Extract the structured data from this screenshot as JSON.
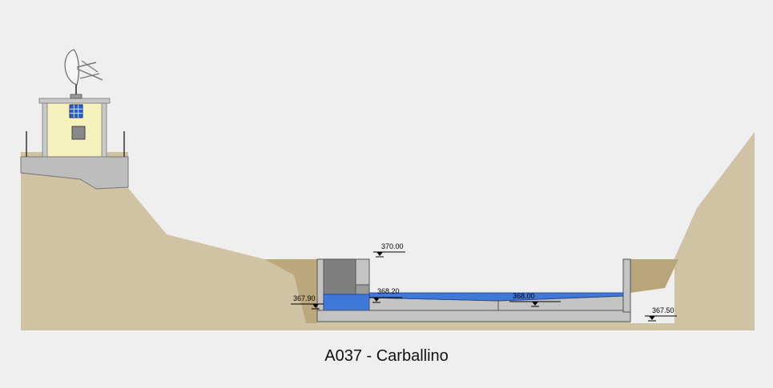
{
  "caption": "A037 - Carballino",
  "elevations": [
    {
      "id": "top",
      "text": "370.00"
    },
    {
      "id": "stilling",
      "text": "367.90"
    },
    {
      "id": "channel-left",
      "text": "368.20"
    },
    {
      "id": "channel-mid",
      "text": "368.00"
    },
    {
      "id": "downstream",
      "text": "367.50"
    }
  ],
  "colors": {
    "background": "#efefef",
    "ground": "#cfc3a3",
    "ground_dark": "#b8a57a",
    "concrete": "#c4c4c4",
    "water": "#3e78d8",
    "hut": "#f4f1bd",
    "window": "#2b5fd0"
  }
}
